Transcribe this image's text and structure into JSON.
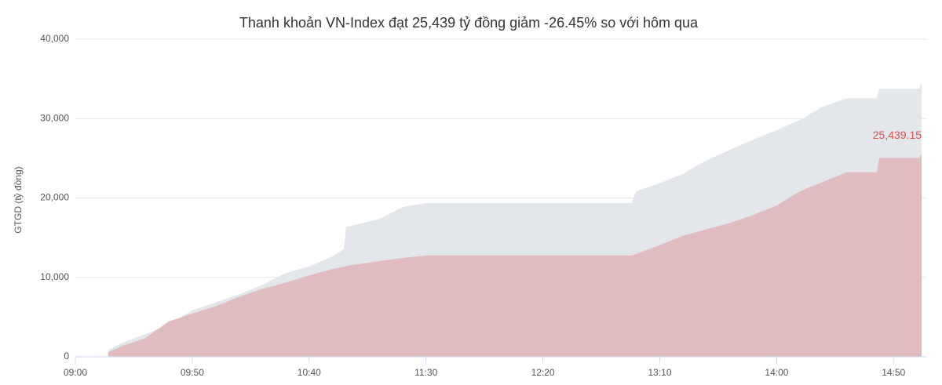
{
  "chart_data": {
    "type": "area",
    "title": "Thanh khoản VN-Index đạt 25,439 tỷ đồng giảm -26.45% so với hôm qua",
    "y_label": "GTGD (tỷ đồng)",
    "x": [
      "09:14",
      "09:20",
      "09:30",
      "09:40",
      "09:50",
      "10:00",
      "10:10",
      "10:20",
      "10:30",
      "10:40",
      "10:50",
      "10:55",
      "10:56",
      "11:10",
      "11:20",
      "11:30",
      "12:58",
      "13:00",
      "13:10",
      "13:20",
      "13:30",
      "13:40",
      "13:50",
      "14:00",
      "14:10",
      "14:20",
      "14:30",
      "14:43",
      "14:44",
      "15:01",
      "15:02"
    ],
    "series": [
      {
        "color": "#e3e6ea",
        "values": [
          800,
          1700,
          2800,
          4000,
          5800,
          6800,
          7800,
          9000,
          10500,
          11300,
          12600,
          13500,
          16300,
          17300,
          18800,
          19300,
          19300,
          20800,
          21800,
          23000,
          24700,
          26000,
          27300,
          28500,
          29800,
          31500,
          32500,
          32500,
          33700,
          33700,
          34500
        ]
      },
      {
        "color": "#e0bcc0",
        "label_color": "#d9534f",
        "values": [
          500,
          1300,
          2300,
          4400,
          5400,
          6300,
          7500,
          8500,
          9300,
          10200,
          11000,
          11300,
          11400,
          12000,
          12400,
          12700,
          12700,
          12900,
          14000,
          15200,
          16000,
          16800,
          17800,
          19000,
          20800,
          22000,
          23200,
          23200,
          25000,
          25000,
          25439.15
        ],
        "value_labels": [
          null,
          null,
          null,
          null,
          null,
          null,
          null,
          null,
          null,
          null,
          null,
          null,
          null,
          null,
          null,
          null,
          null,
          null,
          null,
          null,
          null,
          null,
          null,
          null,
          null,
          null,
          null,
          null,
          null,
          null,
          "25,439.15"
        ]
      }
    ],
    "xlim": [
      "09:00",
      "15:04"
    ],
    "xticks": [
      "09:00",
      "09:50",
      "10:40",
      "11:30",
      "12:20",
      "13:10",
      "14:00",
      "14:50"
    ],
    "ylim": [
      0,
      40000
    ],
    "yticks": [
      0,
      {
        "value": 10000,
        "label": "10,000"
      },
      {
        "value": 20000,
        "label": "20,000"
      },
      {
        "value": 30000,
        "label": "30,000"
      },
      {
        "value": 40000,
        "label": "40,000"
      }
    ],
    "grid": true
  }
}
